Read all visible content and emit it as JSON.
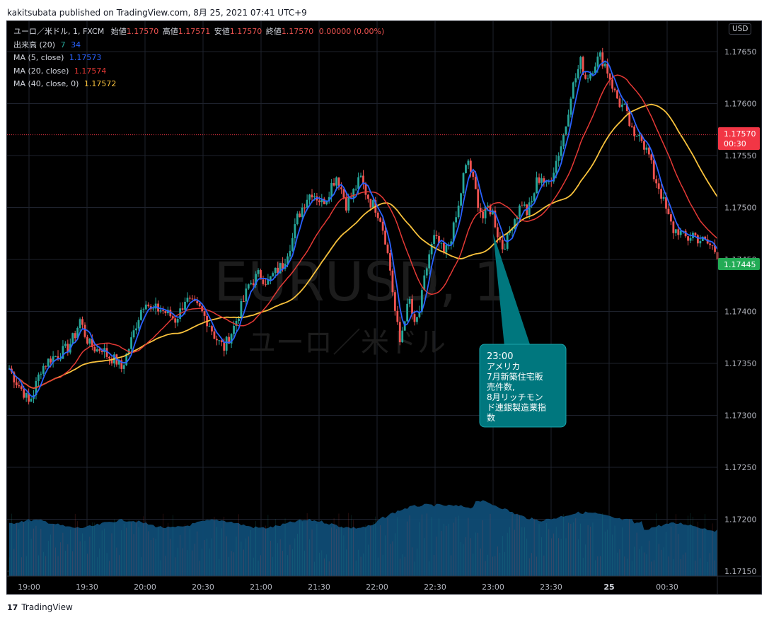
{
  "header": {
    "published_text": "kakitsubata published on TradingView.com, 8月 25, 2021 07:41 UTC+9"
  },
  "legend": {
    "symbol_prefix": "ユーロ／米ドル, 1, FXCM",
    "ohlc": [
      {
        "label": "始値",
        "value": "1.17570"
      },
      {
        "label": "高値",
        "value": "1.17571"
      },
      {
        "label": "安値",
        "value": "1.17570"
      },
      {
        "label": "終値",
        "value": "1.17570"
      }
    ],
    "change": "0.00000 (0.00%)",
    "volume": {
      "label": "出来高 (20)",
      "v1": "7",
      "v2": "34"
    },
    "ma5": {
      "label": "MA (5, close)",
      "value": "1.17573"
    },
    "ma20": {
      "label": "MA (20, close)",
      "value": "1.17574"
    },
    "ma40": {
      "label": "MA (40, close, 0)",
      "value": "1.17572"
    }
  },
  "currency_button": "USD",
  "watermark": {
    "line1": "EURUSD, 1",
    "line2": "ユーロ／米ドル"
  },
  "price_badges": {
    "last_price": "1.17570",
    "countdown": "00:30",
    "ma_price": "1.17445"
  },
  "annotation": {
    "lines": [
      "23:00",
      "アメリカ",
      "7月新築住宅販",
      "売件数,",
      "8月リッチモン",
      "ド連銀製造業指",
      "数"
    ]
  },
  "footer": {
    "brand": "TradingView",
    "logo": "17"
  },
  "colors": {
    "up": "#26a69a",
    "down": "#ef5350",
    "ma5": "#2962ff",
    "ma20": "#e53935",
    "ma40": "#f9c23c",
    "volume_area": "#0f4c75",
    "annotation_bg": "#00777e",
    "badge_red": "#f23645",
    "badge_green": "#22ab55"
  },
  "chart_data": {
    "type": "candlestick",
    "yaxis": {
      "min": 1.1715,
      "max": 1.1768,
      "ticks": [
        "1.17150",
        "1.17200",
        "1.17250",
        "1.17300",
        "1.17350",
        "1.17400",
        "1.17450",
        "1.17500",
        "1.17550",
        "1.17600",
        "1.17650"
      ]
    },
    "xaxis": {
      "ticks": [
        "19:00",
        "19:30",
        "20:00",
        "20:30",
        "21:00",
        "21:30",
        "22:00",
        "22:30",
        "23:00",
        "23:30",
        "25",
        "00:30"
      ]
    },
    "close_path": [
      [
        0,
        1.17345
      ],
      [
        3,
        1.17332
      ],
      [
        6,
        1.17322
      ],
      [
        8,
        1.17312
      ],
      [
        10,
        1.17322
      ],
      [
        13,
        1.17345
      ],
      [
        17,
        1.17355
      ],
      [
        20,
        1.17358
      ],
      [
        24,
        1.17365
      ],
      [
        27,
        1.17378
      ],
      [
        29,
        1.17392
      ],
      [
        31,
        1.17378
      ],
      [
        33,
        1.17368
      ],
      [
        36,
        1.17363
      ],
      [
        38,
        1.17365
      ],
      [
        40,
        1.17358
      ],
      [
        42,
        1.17355
      ],
      [
        44,
        1.17352
      ],
      [
        46,
        1.17345
      ],
      [
        48,
        1.17358
      ],
      [
        50,
        1.17372
      ],
      [
        52,
        1.17388
      ],
      [
        54,
        1.17402
      ],
      [
        56,
        1.17412
      ],
      [
        58,
        1.174
      ],
      [
        60,
        1.17402
      ],
      [
        62,
        1.17402
      ],
      [
        64,
        1.17399
      ],
      [
        66,
        1.17396
      ],
      [
        68,
        1.17392
      ],
      [
        70,
        1.174
      ],
      [
        72,
        1.17412
      ],
      [
        74,
        1.17408
      ],
      [
        76,
        1.17405
      ],
      [
        78,
        1.17402
      ],
      [
        80,
        1.17395
      ],
      [
        82,
        1.17388
      ],
      [
        84,
        1.17377
      ],
      [
        86,
        1.1737
      ],
      [
        88,
        1.17365
      ],
      [
        90,
        1.17375
      ],
      [
        92,
        1.17385
      ],
      [
        94,
        1.17398
      ],
      [
        96,
        1.1741
      ],
      [
        98,
        1.17425
      ],
      [
        100,
        1.1743
      ],
      [
        102,
        1.17435
      ],
      [
        104,
        1.17432
      ],
      [
        106,
        1.17428
      ],
      [
        108,
        1.17435
      ],
      [
        110,
        1.1744
      ],
      [
        112,
        1.17445
      ],
      [
        114,
        1.17458
      ],
      [
        116,
        1.1747
      ],
      [
        118,
        1.1749
      ],
      [
        120,
        1.175
      ],
      [
        122,
        1.1751
      ],
      [
        124,
        1.17515
      ],
      [
        126,
        1.1751
      ],
      [
        128,
        1.17505
      ],
      [
        130,
        1.1751
      ],
      [
        132,
        1.17522
      ],
      [
        134,
        1.1753
      ],
      [
        136,
        1.17518
      ],
      [
        138,
        1.17503
      ],
      [
        140,
        1.1751
      ],
      [
        142,
        1.1752
      ],
      [
        144,
        1.17528
      ],
      [
        146,
        1.17515
      ],
      [
        148,
        1.17505
      ],
      [
        150,
        1.175
      ],
      [
        152,
        1.1749
      ],
      [
        154,
        1.1747
      ],
      [
        156,
        1.1744
      ],
      [
        158,
        1.174
      ],
      [
        160,
        1.1737
      ],
      [
        162,
        1.17395
      ],
      [
        164,
        1.1741
      ],
      [
        166,
        1.17385
      ],
      [
        168,
        1.174
      ],
      [
        170,
        1.1743
      ],
      [
        172,
        1.17455
      ],
      [
        174,
        1.1747
      ],
      [
        176,
        1.17465
      ],
      [
        178,
        1.17455
      ],
      [
        180,
        1.17465
      ],
      [
        182,
        1.1748
      ],
      [
        184,
        1.175
      ],
      [
        186,
        1.1753
      ],
      [
        188,
        1.17545
      ],
      [
        190,
        1.17525
      ],
      [
        192,
        1.17505
      ],
      [
        194,
        1.1749
      ],
      [
        196,
        1.175
      ],
      [
        198,
        1.17495
      ],
      [
        200,
        1.17475
      ],
      [
        202,
        1.17462
      ],
      [
        204,
        1.1747
      ],
      [
        206,
        1.17485
      ],
      [
        208,
        1.17495
      ],
      [
        210,
        1.17505
      ],
      [
        212,
        1.17495
      ],
      [
        214,
        1.17505
      ],
      [
        216,
        1.17525
      ],
      [
        218,
        1.1753
      ],
      [
        220,
        1.1752
      ],
      [
        222,
        1.1753
      ],
      [
        224,
        1.17545
      ],
      [
        226,
        1.1756
      ],
      [
        228,
        1.1758
      ],
      [
        230,
        1.1761
      ],
      [
        232,
        1.17625
      ],
      [
        234,
        1.1764
      ],
      [
        236,
        1.17625
      ],
      [
        238,
        1.1763
      ],
      [
        240,
        1.1764
      ],
      [
        242,
        1.17645
      ],
      [
        244,
        1.17638
      ],
      [
        246,
        1.17625
      ],
      [
        248,
        1.1761
      ],
      [
        250,
        1.176
      ],
      [
        252,
        1.17595
      ],
      [
        254,
        1.1758
      ],
      [
        256,
        1.17565
      ],
      [
        258,
        1.17575
      ],
      [
        260,
        1.1756
      ],
      [
        262,
        1.1755
      ],
      [
        264,
        1.1753
      ],
      [
        266,
        1.1752
      ],
      [
        268,
        1.17505
      ],
      [
        270,
        1.1749
      ],
      [
        272,
        1.17478
      ],
      [
        274,
        1.17478
      ],
      [
        276,
        1.17472
      ],
      [
        278,
        1.1747
      ],
      [
        280,
        1.17475
      ],
      [
        282,
        1.1747
      ],
      [
        284,
        1.17468
      ],
      [
        286,
        1.17465
      ],
      [
        288,
        1.17462
      ],
      [
        290,
        1.17455
      ]
    ]
  }
}
